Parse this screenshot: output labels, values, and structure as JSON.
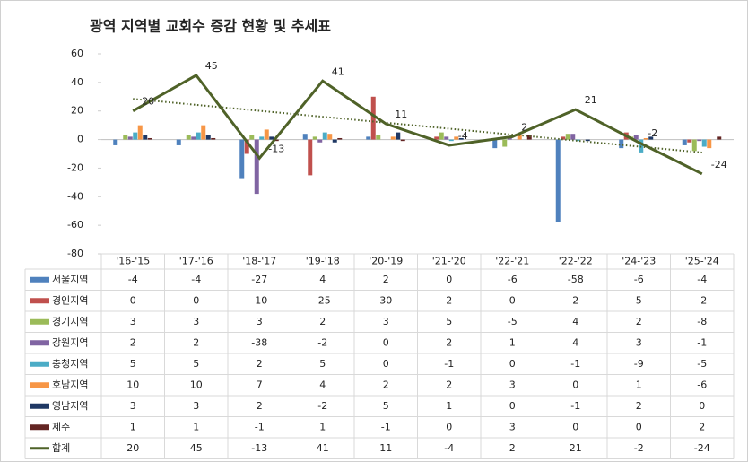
{
  "chart_data": {
    "type": "bar_line_table",
    "title": "광역 지역별 교회수 증감 현황 및 추세표",
    "categories": [
      "'16-'15",
      "'17-'16",
      "'18-'17",
      "'19-'18",
      "'20-'19",
      "'21-'20",
      "'22-'21",
      "'22-'22",
      "'24-'23",
      "'25-'24"
    ],
    "series": [
      {
        "name": "서울지역",
        "color": "#4f81bd",
        "values": [
          -4,
          -4,
          -27,
          4,
          2,
          0,
          -6,
          -58,
          -6,
          -4
        ]
      },
      {
        "name": "경인지역",
        "color": "#c0504d",
        "values": [
          0,
          0,
          -10,
          -25,
          30,
          2,
          0,
          2,
          5,
          -2
        ]
      },
      {
        "name": "경기지역",
        "color": "#9bbb59",
        "values": [
          3,
          3,
          3,
          2,
          3,
          5,
          -5,
          4,
          2,
          -8
        ]
      },
      {
        "name": "강원지역",
        "color": "#8064a2",
        "values": [
          2,
          2,
          -38,
          -2,
          0,
          2,
          1,
          4,
          3,
          -1
        ]
      },
      {
        "name": "충청지역",
        "color": "#4bacc6",
        "values": [
          5,
          5,
          2,
          5,
          0,
          -1,
          0,
          -1,
          -9,
          -5
        ]
      },
      {
        "name": "호남지역",
        "color": "#f79646",
        "values": [
          10,
          10,
          7,
          4,
          2,
          2,
          3,
          0,
          1,
          -6
        ]
      },
      {
        "name": "영남지역",
        "color": "#1f3864",
        "values": [
          3,
          3,
          2,
          -2,
          5,
          1,
          0,
          -1,
          2,
          0
        ]
      },
      {
        "name": "제주",
        "color": "#632523",
        "values": [
          1,
          1,
          -1,
          1,
          -1,
          0,
          3,
          0,
          0,
          2
        ]
      },
      {
        "name": "합계",
        "color": "#4f6228",
        "type": "line",
        "trendline": true,
        "values": [
          20,
          45,
          -13,
          41,
          11,
          -4,
          2,
          21,
          -2,
          -24
        ]
      }
    ],
    "ylim": [
      -80,
      60
    ],
    "yticks": [
      -80,
      -60,
      -40,
      -20,
      0,
      20,
      40,
      60
    ],
    "negative_label_color": "#ff0000",
    "data_table": true
  }
}
